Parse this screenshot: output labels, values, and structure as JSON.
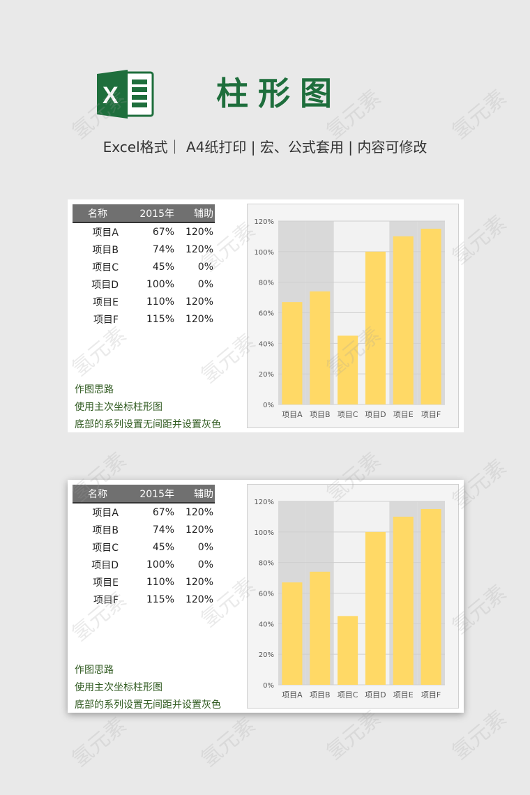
{
  "header": {
    "title": "柱形图",
    "subtitle": "Excel格式｜ A4纸打印 | 宏、公式套用 | 内容可修改"
  },
  "table": {
    "headers": [
      "名称",
      "2015年",
      "辅助"
    ],
    "rows": [
      [
        "项目A",
        "67%",
        "120%"
      ],
      [
        "项目B",
        "74%",
        "120%"
      ],
      [
        "项目C",
        "45%",
        "0%"
      ],
      [
        "项目D",
        "100%",
        "0%"
      ],
      [
        "项目E",
        "110%",
        "120%"
      ],
      [
        "项目F",
        "115%",
        "120%"
      ]
    ]
  },
  "notes": [
    "作图思路",
    "使用主次坐标柱形图",
    "底部的系列设置无间距并设置灰色"
  ],
  "watermark": "氢元素",
  "colors": {
    "bar": "#ffd966",
    "band": "#d9d9d9",
    "title": "#1e6e3c",
    "header_bg": "#707070"
  },
  "chart_data": [
    {
      "type": "bar",
      "categories": [
        "项目A",
        "项目B",
        "项目C",
        "项目D",
        "项目E",
        "项目F"
      ],
      "series": [
        {
          "name": "2015年",
          "values": [
            67,
            74,
            45,
            100,
            110,
            115
          ]
        },
        {
          "name": "辅助",
          "values": [
            120,
            120,
            0,
            0,
            120,
            120
          ]
        }
      ],
      "yticks": [
        "0%",
        "20%",
        "40%",
        "60%",
        "80%",
        "100%",
        "120%"
      ],
      "ylim": [
        0,
        120
      ],
      "grid": true
    },
    {
      "type": "bar",
      "categories": [
        "项目A",
        "项目B",
        "项目C",
        "项目D",
        "项目E",
        "项目F"
      ],
      "series": [
        {
          "name": "2015年",
          "values": [
            67,
            74,
            45,
            100,
            110,
            115
          ]
        },
        {
          "name": "辅助",
          "values": [
            120,
            120,
            0,
            0,
            120,
            120
          ]
        }
      ],
      "yticks": [
        "0%",
        "20%",
        "40%",
        "60%",
        "80%",
        "100%",
        "120%"
      ],
      "ylim": [
        0,
        120
      ],
      "grid": true
    }
  ]
}
